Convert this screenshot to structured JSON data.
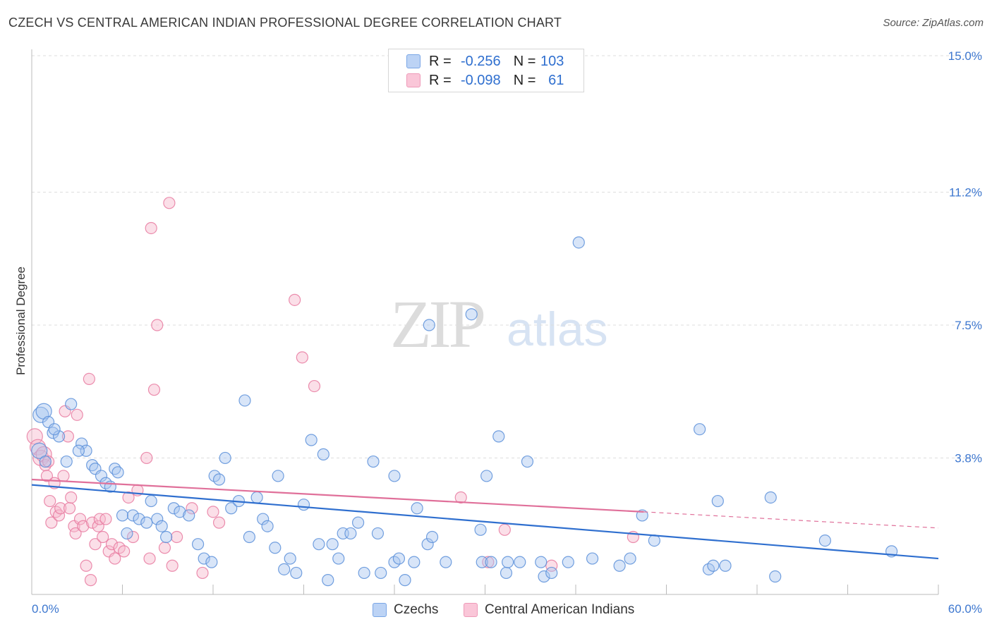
{
  "title": "CZECH VS CENTRAL AMERICAN INDIAN PROFESSIONAL DEGREE CORRELATION CHART",
  "source": "Source: ZipAtlas.com",
  "watermark": {
    "zip": "ZIP",
    "atlas": "atlas"
  },
  "legend": {
    "r_label": "R =",
    "n_label": "N =",
    "rows": [
      {
        "r": "-0.256",
        "n": "103",
        "color": "#7aa6e6"
      },
      {
        "r": "-0.098",
        "n": "61",
        "color": "#ee9ab8"
      }
    ]
  },
  "chart_data": {
    "type": "scatter",
    "title": "CZECH VS CENTRAL AMERICAN INDIAN PROFESSIONAL DEGREE CORRELATION CHART",
    "xlabel": "",
    "ylabel": "Professional Degree",
    "xlim": [
      0,
      60
    ],
    "ylim": [
      0,
      15
    ],
    "x_tick_labels": [
      "0.0%",
      "60.0%"
    ],
    "y_ticks": [
      3.8,
      7.5,
      11.2,
      15.0
    ],
    "y_tick_labels": [
      "3.8%",
      "7.5%",
      "11.2%",
      "15.0%"
    ],
    "grid": true,
    "legend_position": "top-center",
    "series": [
      {
        "name": "Czechs",
        "color": "#5b8fd9",
        "fill": "#a9c6ef",
        "regression": {
          "x": [
            0,
            60
          ],
          "y": [
            3.05,
            1.0
          ]
        },
        "points": [
          [
            0.6,
            5.0
          ],
          [
            0.8,
            5.1
          ],
          [
            1.1,
            4.8
          ],
          [
            1.4,
            4.5
          ],
          [
            1.8,
            4.4
          ],
          [
            2.6,
            5.3
          ],
          [
            1.5,
            4.6
          ],
          [
            3.3,
            4.2
          ],
          [
            3.6,
            4.0
          ],
          [
            0.5,
            4.0
          ],
          [
            0.9,
            3.7
          ],
          [
            2.3,
            3.7
          ],
          [
            3.1,
            4.0
          ],
          [
            4.0,
            3.6
          ],
          [
            4.2,
            3.5
          ],
          [
            5.5,
            3.5
          ],
          [
            5.7,
            3.4
          ],
          [
            4.6,
            3.3
          ],
          [
            4.9,
            3.1
          ],
          [
            5.2,
            3.0
          ],
          [
            6.0,
            2.2
          ],
          [
            6.3,
            1.7
          ],
          [
            6.7,
            2.2
          ],
          [
            7.1,
            2.1
          ],
          [
            7.6,
            2.0
          ],
          [
            7.9,
            2.6
          ],
          [
            8.3,
            2.1
          ],
          [
            8.6,
            1.9
          ],
          [
            8.9,
            1.6
          ],
          [
            9.4,
            2.4
          ],
          [
            9.8,
            2.3
          ],
          [
            10.4,
            2.2
          ],
          [
            11.0,
            1.4
          ],
          [
            11.4,
            1.0
          ],
          [
            11.9,
            0.9
          ],
          [
            12.1,
            3.3
          ],
          [
            12.4,
            3.2
          ],
          [
            12.8,
            3.8
          ],
          [
            13.2,
            2.4
          ],
          [
            13.7,
            2.6
          ],
          [
            14.1,
            5.4
          ],
          [
            14.4,
            1.6
          ],
          [
            14.9,
            2.7
          ],
          [
            15.3,
            2.1
          ],
          [
            15.6,
            1.9
          ],
          [
            16.1,
            1.3
          ],
          [
            16.3,
            3.3
          ],
          [
            16.7,
            0.7
          ],
          [
            17.1,
            1.0
          ],
          [
            17.5,
            0.6
          ],
          [
            18.0,
            2.5
          ],
          [
            18.5,
            4.3
          ],
          [
            19.0,
            1.4
          ],
          [
            19.3,
            3.9
          ],
          [
            19.6,
            0.4
          ],
          [
            19.9,
            1.4
          ],
          [
            20.3,
            1.0
          ],
          [
            20.6,
            1.7
          ],
          [
            21.1,
            1.7
          ],
          [
            21.6,
            2.0
          ],
          [
            22.6,
            3.7
          ],
          [
            22.0,
            0.6
          ],
          [
            22.9,
            1.7
          ],
          [
            23.1,
            0.6
          ],
          [
            24.0,
            3.3
          ],
          [
            24.0,
            0.9
          ],
          [
            24.3,
            1.0
          ],
          [
            24.7,
            0.4
          ],
          [
            25.3,
            0.9
          ],
          [
            25.5,
            2.4
          ],
          [
            26.2,
            1.4
          ],
          [
            26.3,
            7.5
          ],
          [
            26.5,
            1.6
          ],
          [
            27.4,
            0.9
          ],
          [
            29.1,
            7.8
          ],
          [
            29.7,
            1.8
          ],
          [
            29.8,
            0.9
          ],
          [
            30.1,
            3.3
          ],
          [
            30.4,
            0.9
          ],
          [
            30.9,
            4.4
          ],
          [
            31.4,
            0.6
          ],
          [
            31.5,
            0.9
          ],
          [
            32.3,
            0.9
          ],
          [
            32.8,
            3.7
          ],
          [
            33.7,
            0.9
          ],
          [
            33.9,
            0.5
          ],
          [
            34.4,
            0.6
          ],
          [
            35.5,
            0.9
          ],
          [
            36.2,
            9.8
          ],
          [
            37.1,
            1.0
          ],
          [
            38.9,
            0.8
          ],
          [
            39.6,
            1.0
          ],
          [
            40.4,
            2.2
          ],
          [
            41.2,
            1.5
          ],
          [
            44.2,
            4.6
          ],
          [
            44.8,
            0.7
          ],
          [
            45.1,
            0.8
          ],
          [
            45.4,
            2.6
          ],
          [
            45.9,
            0.8
          ],
          [
            48.9,
            2.7
          ],
          [
            49.2,
            0.5
          ],
          [
            52.5,
            1.5
          ],
          [
            56.9,
            1.2
          ]
        ]
      },
      {
        "name": "Central American Indians",
        "color": "#e87aa0",
        "fill": "#f7b8cd",
        "regression": {
          "x": [
            0,
            40.5
          ],
          "y": [
            3.2,
            2.3
          ]
        },
        "regression_dashed": {
          "x": [
            40.5,
            60
          ],
          "y": [
            2.3,
            1.85
          ]
        },
        "points": [
          [
            0.2,
            4.4
          ],
          [
            0.4,
            4.1
          ],
          [
            0.6,
            3.8
          ],
          [
            0.8,
            3.9
          ],
          [
            0.9,
            3.6
          ],
          [
            1.0,
            3.3
          ],
          [
            1.1,
            3.7
          ],
          [
            1.2,
            2.6
          ],
          [
            1.3,
            2.0
          ],
          [
            1.5,
            3.1
          ],
          [
            1.6,
            2.3
          ],
          [
            1.8,
            2.2
          ],
          [
            1.9,
            2.4
          ],
          [
            2.1,
            3.3
          ],
          [
            2.2,
            5.1
          ],
          [
            2.4,
            4.4
          ],
          [
            2.5,
            2.4
          ],
          [
            2.6,
            2.7
          ],
          [
            2.8,
            1.9
          ],
          [
            2.9,
            1.7
          ],
          [
            3.0,
            5.0
          ],
          [
            3.2,
            2.1
          ],
          [
            3.4,
            1.9
          ],
          [
            3.6,
            0.8
          ],
          [
            3.8,
            6.0
          ],
          [
            3.9,
            0.4
          ],
          [
            4.0,
            2.0
          ],
          [
            4.2,
            1.4
          ],
          [
            4.4,
            1.9
          ],
          [
            4.5,
            2.1
          ],
          [
            4.7,
            1.6
          ],
          [
            4.9,
            2.1
          ],
          [
            5.1,
            1.2
          ],
          [
            5.3,
            1.4
          ],
          [
            5.5,
            1.0
          ],
          [
            5.8,
            1.3
          ],
          [
            6.1,
            1.2
          ],
          [
            6.4,
            2.7
          ],
          [
            6.7,
            1.6
          ],
          [
            7.0,
            2.9
          ],
          [
            7.6,
            3.8
          ],
          [
            7.8,
            1.0
          ],
          [
            7.9,
            10.2
          ],
          [
            8.1,
            5.7
          ],
          [
            8.3,
            7.5
          ],
          [
            8.8,
            1.3
          ],
          [
            9.1,
            10.9
          ],
          [
            9.3,
            0.8
          ],
          [
            9.6,
            1.6
          ],
          [
            10.6,
            2.4
          ],
          [
            11.3,
            0.6
          ],
          [
            12.0,
            2.3
          ],
          [
            12.4,
            2.0
          ],
          [
            17.4,
            8.2
          ],
          [
            17.9,
            6.6
          ],
          [
            18.7,
            5.8
          ],
          [
            28.4,
            2.7
          ],
          [
            30.2,
            0.9
          ],
          [
            31.3,
            1.8
          ],
          [
            34.4,
            0.8
          ],
          [
            39.8,
            1.6
          ]
        ]
      }
    ]
  }
}
